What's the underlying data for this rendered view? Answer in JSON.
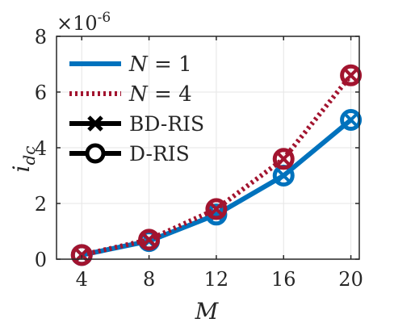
{
  "chart_data": {
    "type": "line",
    "x": [
      4,
      8,
      12,
      16,
      20
    ],
    "xlabel": "M",
    "ylabel": "i",
    "ylabel_subscript": "dc",
    "xlim": [
      2.5,
      20.5
    ],
    "ylim": [
      0,
      8
    ],
    "xticks": [
      4,
      8,
      12,
      16,
      20
    ],
    "yticks": [
      0,
      2,
      4,
      6,
      8
    ],
    "y_exponent_base": "×10",
    "y_exponent_power": "-6",
    "grid": true,
    "legend_position": "top-left",
    "series": [
      {
        "name": "N = 1",
        "name_symbol": "N",
        "name_value": "= 1",
        "color": "#0072BD",
        "line_style": "solid",
        "bd_ris": [
          0.15,
          0.65,
          1.6,
          3.0,
          5.0
        ],
        "d_ris": [
          0.15,
          0.65,
          1.6,
          3.0,
          5.0
        ]
      },
      {
        "name": "N = 4",
        "name_symbol": "N",
        "name_value": "= 4",
        "color": "#A2142F",
        "line_style": "dotted",
        "bd_ris": [
          0.15,
          0.7,
          1.8,
          3.6,
          6.6
        ],
        "d_ris": [
          0.15,
          0.7,
          1.8,
          3.6,
          6.6
        ]
      }
    ],
    "marker_legend": [
      {
        "label": "BD-RIS",
        "marker": "x"
      },
      {
        "label": "D-RIS",
        "marker": "o"
      }
    ]
  }
}
